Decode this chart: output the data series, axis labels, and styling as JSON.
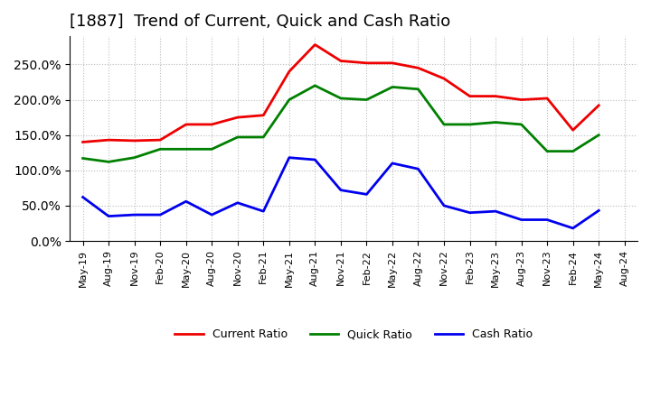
{
  "title": "[1887]  Trend of Current, Quick and Cash Ratio",
  "x_labels": [
    "May-19",
    "Aug-19",
    "Nov-19",
    "Feb-20",
    "May-20",
    "Aug-20",
    "Nov-20",
    "Feb-21",
    "May-21",
    "Aug-21",
    "Nov-21",
    "Feb-22",
    "May-22",
    "Aug-22",
    "Nov-22",
    "Feb-23",
    "May-23",
    "Aug-23",
    "Nov-23",
    "Feb-24",
    "May-24",
    "Aug-24"
  ],
  "current_ratio": [
    1.4,
    1.43,
    1.42,
    1.43,
    1.65,
    1.65,
    1.75,
    1.78,
    2.4,
    2.78,
    2.55,
    2.52,
    2.52,
    2.45,
    2.3,
    2.05,
    2.05,
    2.0,
    2.02,
    1.57,
    1.92,
    null
  ],
  "quick_ratio": [
    1.17,
    1.12,
    1.18,
    1.3,
    1.3,
    1.3,
    1.47,
    1.47,
    2.0,
    2.2,
    2.02,
    2.0,
    2.18,
    2.15,
    1.65,
    1.65,
    1.68,
    1.65,
    1.27,
    1.27,
    1.5,
    null
  ],
  "cash_ratio": [
    0.62,
    0.35,
    0.37,
    0.37,
    0.56,
    0.37,
    0.54,
    0.42,
    1.18,
    1.15,
    0.72,
    0.66,
    1.1,
    1.02,
    0.5,
    0.4,
    0.42,
    0.3,
    0.3,
    0.18,
    0.43,
    null
  ],
  "current_color": "#ee0000",
  "quick_color": "#008000",
  "cash_color": "#0000ee",
  "line_width": 2.0,
  "ylim_min": 0.0,
  "ylim_max": 2.9,
  "yticks": [
    0.0,
    0.5,
    1.0,
    1.5,
    2.0,
    2.5
  ],
  "background_color": "#ffffff",
  "grid_color": "#bbbbbb",
  "title_fontsize": 13
}
